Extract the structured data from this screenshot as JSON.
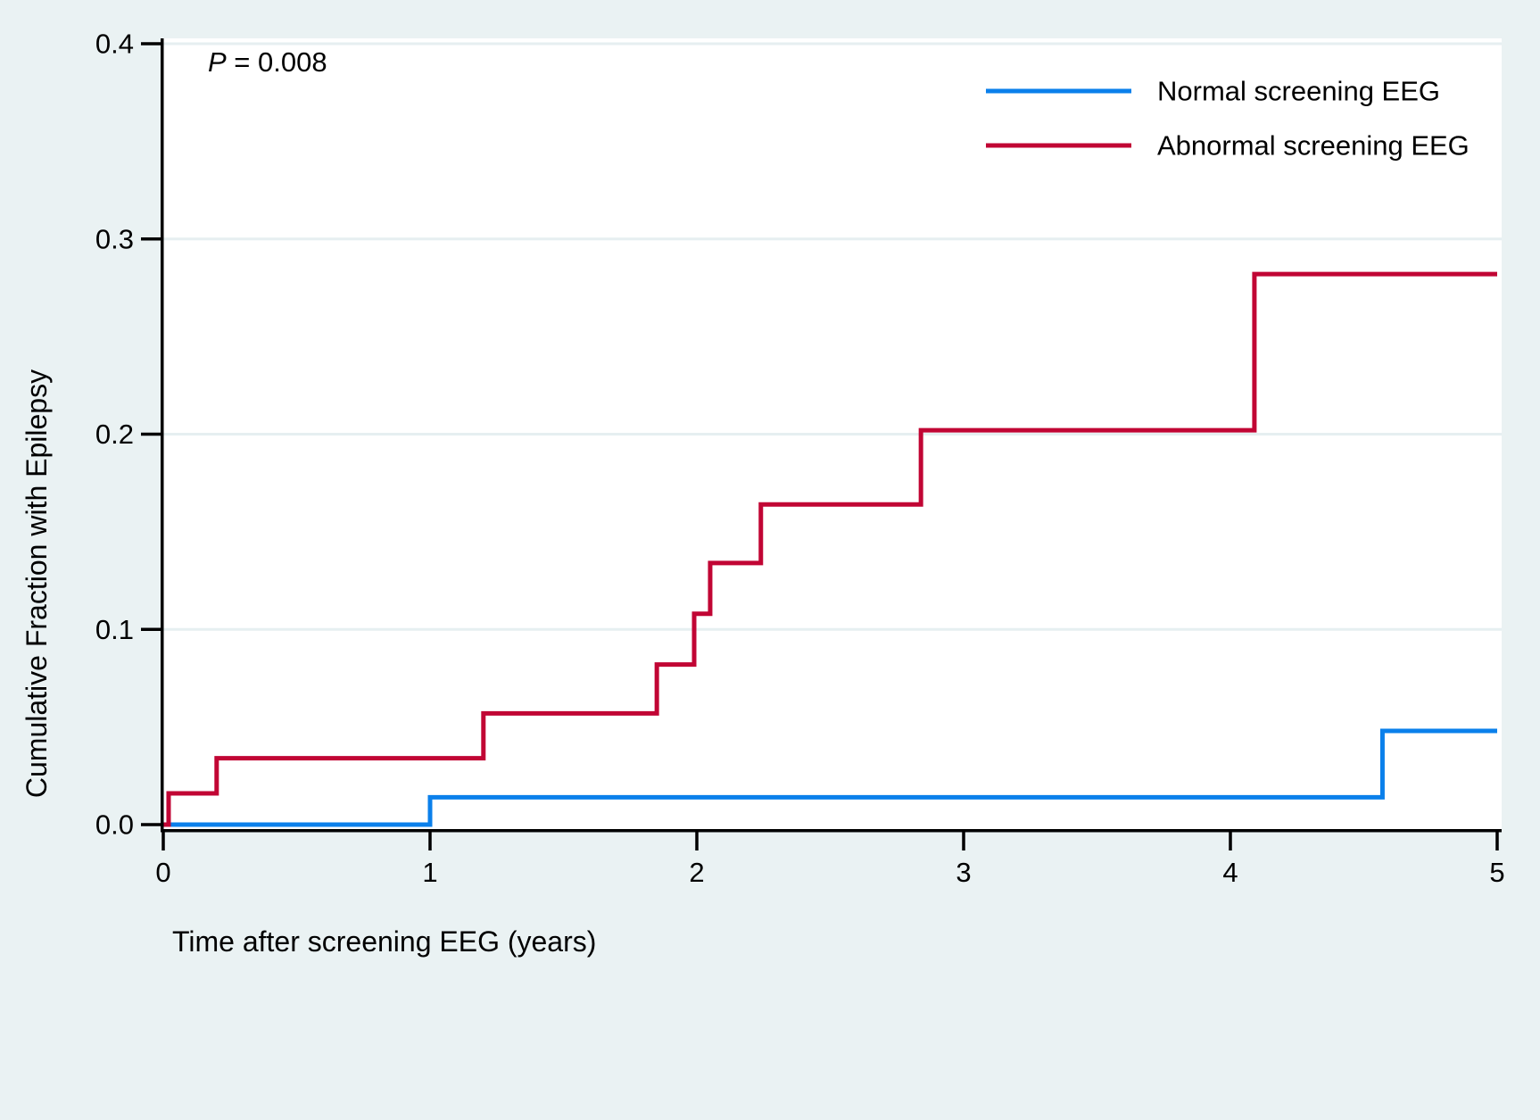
{
  "figure": {
    "p_annotation": {
      "italic": "P",
      "rest": " = 0.008"
    },
    "x_axis": {
      "title": "Time after screening EEG (years)",
      "tick_labels": [
        "0",
        "1",
        "2",
        "3",
        "4",
        "5"
      ]
    },
    "y_axis": {
      "title": "Cumulative Fraction with Epilepsy",
      "tick_labels": [
        "0.0",
        "0.1",
        "0.2",
        "0.3",
        "0.4"
      ]
    }
  },
  "chart_data": {
    "type": "line",
    "subtype": "kaplan-meier-cumulative-incidence-step",
    "title": "",
    "xlabel": "Time after screening EEG (years)",
    "ylabel": "Cumulative Fraction with Epilepsy",
    "xlim": [
      0,
      5
    ],
    "ylim": [
      0,
      0.4
    ],
    "x_ticks": [
      0,
      1,
      2,
      3,
      4,
      5
    ],
    "y_ticks": [
      0.0,
      0.1,
      0.2,
      0.3,
      0.4
    ],
    "grid": "horizontal",
    "annotation": "P = 0.008",
    "legend_position": "top-right-inside",
    "series": [
      {
        "name": "Normal screening EEG",
        "color": "#0B80EB",
        "step_points": [
          [
            0,
            0
          ],
          [
            1.0,
            0.014
          ],
          [
            4.57,
            0.048
          ]
        ],
        "end_x": 5
      },
      {
        "name": "Abnormal screening EEG",
        "color": "#C10534",
        "step_points": [
          [
            0,
            0
          ],
          [
            0.02,
            0.016
          ],
          [
            0.2,
            0.034
          ],
          [
            1.2,
            0.057
          ],
          [
            1.85,
            0.082
          ],
          [
            1.99,
            0.108
          ],
          [
            2.05,
            0.134
          ],
          [
            2.24,
            0.164
          ],
          [
            2.84,
            0.202
          ],
          [
            4.09,
            0.282
          ]
        ],
        "end_x": 5
      }
    ]
  },
  "colors": {
    "background": "#EAF2F3",
    "plot_background": "#FFFFFF",
    "gridline": "#E6EFF1",
    "axis": "#000000",
    "normal_series": "#0B80EB",
    "abnormal_series": "#C10534"
  }
}
